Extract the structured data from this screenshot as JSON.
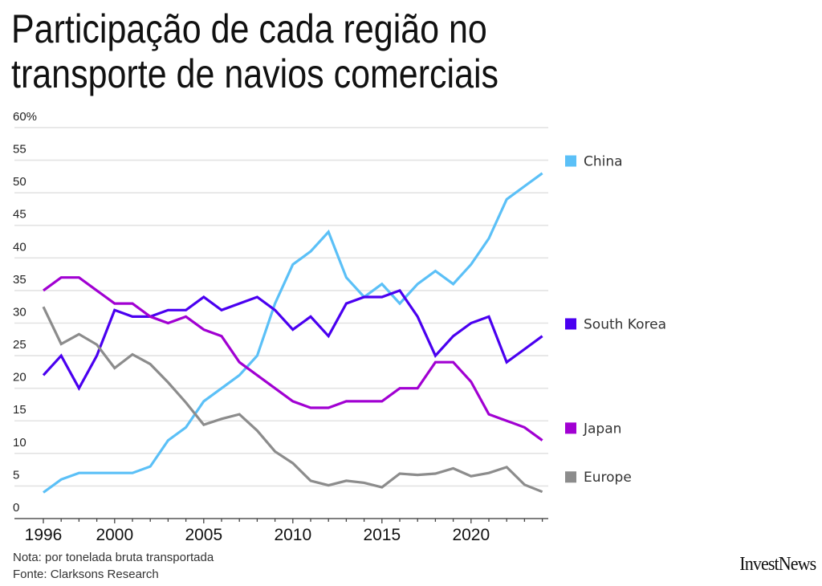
{
  "title_lines": [
    "Participação de cada região no",
    "transporte de navios comerciais"
  ],
  "notes": {
    "nota": "Nota: por tonelada bruta transportada",
    "fonte": "Fonte: Clarksons Research"
  },
  "logo": "InvestNews",
  "chart_data": {
    "type": "line",
    "title": "Participação de cada região no transporte de navios comerciais",
    "xlabel": "",
    "ylabel": "",
    "x": [
      1996,
      1997,
      1998,
      1999,
      2000,
      2001,
      2002,
      2003,
      2004,
      2005,
      2006,
      2007,
      2008,
      2009,
      2010,
      2011,
      2012,
      2013,
      2014,
      2015,
      2016,
      2017,
      2018,
      2019,
      2020,
      2021,
      2022,
      2023,
      2024
    ],
    "xlim": [
      1996,
      2024.3
    ],
    "ylim": [
      0,
      60
    ],
    "yticks": [
      0,
      5,
      10,
      15,
      20,
      25,
      30,
      35,
      40,
      45,
      50,
      55,
      60
    ],
    "ytick_labels": [
      "0",
      "5",
      "10",
      "15",
      "20",
      "25",
      "30",
      "35",
      "40",
      "45",
      "50",
      "55",
      "60%"
    ],
    "xticks_labeled": [
      1996,
      2000,
      2005,
      2010,
      2015,
      2020
    ],
    "xtick_labels": [
      "1996",
      "2000",
      "2005",
      "2010",
      "2015",
      "2020"
    ],
    "grid": true,
    "legend_placement": "right (labels aligned at series end)",
    "series": [
      {
        "name": "China",
        "color": "#5bc0f7",
        "values": [
          4,
          6,
          7,
          7,
          7,
          7,
          8,
          12,
          14,
          18,
          20,
          22,
          25,
          33,
          39,
          41,
          44,
          37,
          34,
          36,
          33,
          36,
          38,
          36,
          39,
          43,
          49,
          51,
          53
        ]
      },
      {
        "name": "South Korea",
        "color": "#4a00f0",
        "values": [
          22,
          25,
          20,
          25,
          32,
          31,
          31,
          32,
          32,
          34,
          32,
          33,
          34,
          32,
          29,
          31,
          28,
          33,
          34,
          34,
          35,
          31,
          25,
          28,
          30,
          31,
          24,
          26,
          28
        ]
      },
      {
        "name": "Japan",
        "color": "#a100d2",
        "values": [
          35,
          37,
          37,
          35,
          33,
          33,
          31,
          30,
          31,
          29,
          28,
          24,
          22,
          20,
          18,
          17,
          17,
          18,
          18,
          18,
          20,
          20,
          24,
          24,
          21,
          16,
          15,
          14,
          12
        ]
      },
      {
        "name": "Europe",
        "color": "#8c8c8c",
        "values": [
          32.5,
          26.8,
          28.3,
          26.7,
          23.1,
          25.2,
          23.7,
          20.9,
          17.8,
          14.4,
          15.3,
          16,
          13.5,
          10.3,
          8.5,
          5.8,
          5.1,
          5.8,
          5.5,
          4.8,
          6.9,
          6.7,
          6.9,
          7.7,
          6.5,
          7,
          7.9,
          5.2,
          4.1
        ]
      }
    ],
    "legend": [
      {
        "name": "China",
        "color": "#5bc0f7",
        "anchor_value": 55
      },
      {
        "name": "South Korea",
        "color": "#4a00f0",
        "anchor_value": 30
      },
      {
        "name": "Japan",
        "color": "#a100d2",
        "anchor_value": 14
      },
      {
        "name": "Europe",
        "color": "#8c8c8c",
        "anchor_value": 6.5
      }
    ]
  }
}
